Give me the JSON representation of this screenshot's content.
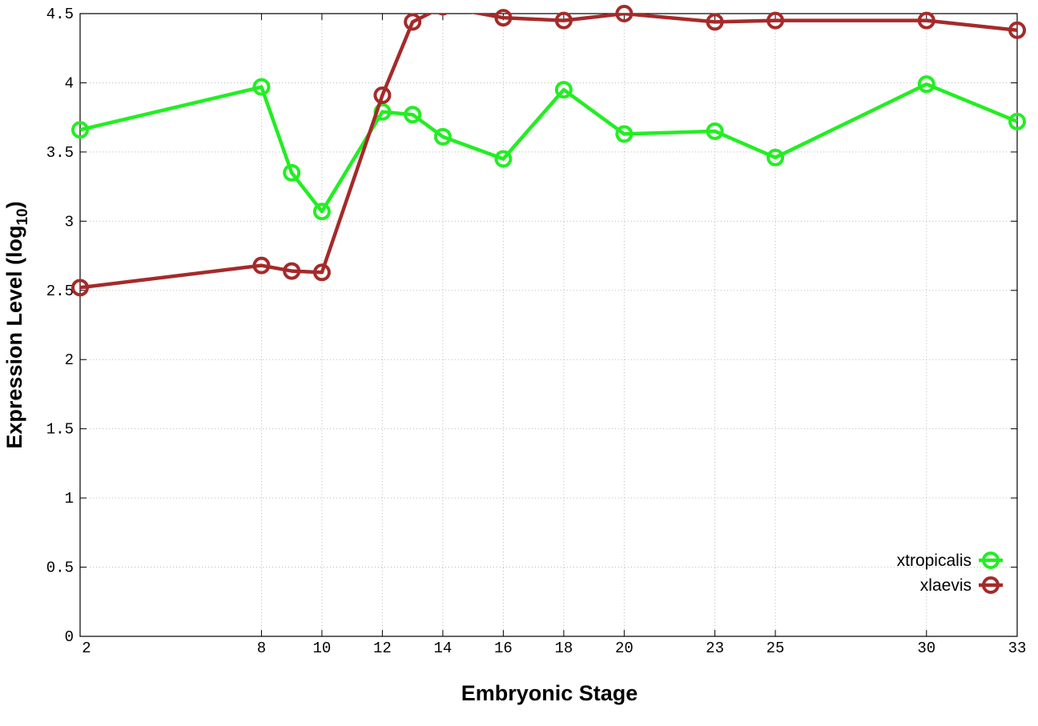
{
  "chart_data": {
    "type": "line",
    "xlabel": "Embryonic Stage",
    "ylabel": "Expression Level (log",
    "ylabel_sub": "10",
    "ylabel_end": ")",
    "x": [
      2,
      8,
      9,
      10,
      12,
      13,
      14,
      16,
      18,
      20,
      23,
      25,
      30,
      33
    ],
    "series": [
      {
        "name": "xtropicalis",
        "color": "#22ee22",
        "values": [
          3.66,
          3.97,
          3.35,
          3.07,
          3.79,
          3.77,
          3.61,
          3.45,
          3.95,
          3.63,
          3.65,
          3.46,
          3.99,
          3.72
        ]
      },
      {
        "name": "xlaevis",
        "color": "#a52a2a",
        "values": [
          2.52,
          2.68,
          2.64,
          2.63,
          3.91,
          4.44,
          4.55,
          4.47,
          4.45,
          4.5,
          4.44,
          4.45,
          4.45,
          4.38
        ]
      }
    ],
    "xlim": [
      2,
      33
    ],
    "xticks": [
      2,
      8,
      10,
      12,
      14,
      16,
      18,
      20,
      23,
      25,
      30,
      33
    ],
    "ylim": [
      0,
      4.5
    ],
    "yticks": [
      0,
      0.5,
      1,
      1.5,
      2,
      2.5,
      3,
      3.5,
      4,
      4.5
    ],
    "grid": true,
    "legend": "lower right"
  }
}
